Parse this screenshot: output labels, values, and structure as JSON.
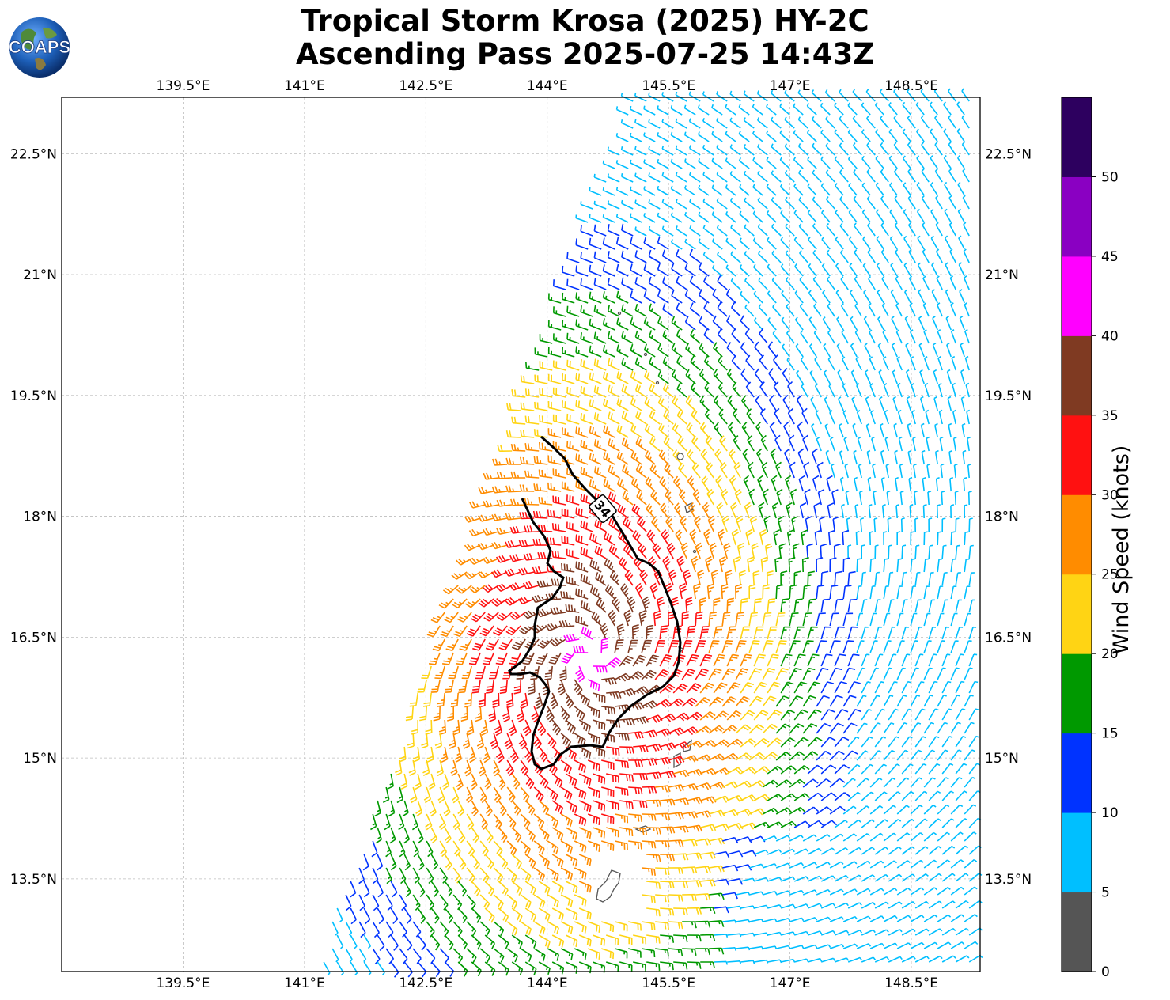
{
  "title_line1": "Tropical Storm Krosa (2025) HY-2C",
  "title_line2": "Ascending Pass 2025-07-25 14:43Z",
  "logo_text": "COAPS",
  "map": {
    "lon_ticks": [
      "139.5°E",
      "141°E",
      "142.5°E",
      "144°E",
      "145.5°E",
      "147°E",
      "148.5°E"
    ],
    "lat_ticks": [
      "22.5°N",
      "21°N",
      "19.5°N",
      "18°N",
      "16.5°N",
      "15°N",
      "13.5°N"
    ],
    "lon_range": [
      138.0,
      149.35
    ],
    "lat_range": [
      12.35,
      23.2
    ],
    "contour_label": "34",
    "gridlines": true
  },
  "colorbar": {
    "label": "Wind Speed (knots)",
    "ticks": [
      "0",
      "5",
      "10",
      "15",
      "20",
      "25",
      "30",
      "35",
      "40",
      "45",
      "50"
    ],
    "colors": [
      "#555555",
      "#00bfff",
      "#0033ff",
      "#009900",
      "#ffd414",
      "#ff8c00",
      "#ff1111",
      "#7f3a22",
      "#ff00ff",
      "#8a00c2",
      "#2d005f"
    ]
  }
}
